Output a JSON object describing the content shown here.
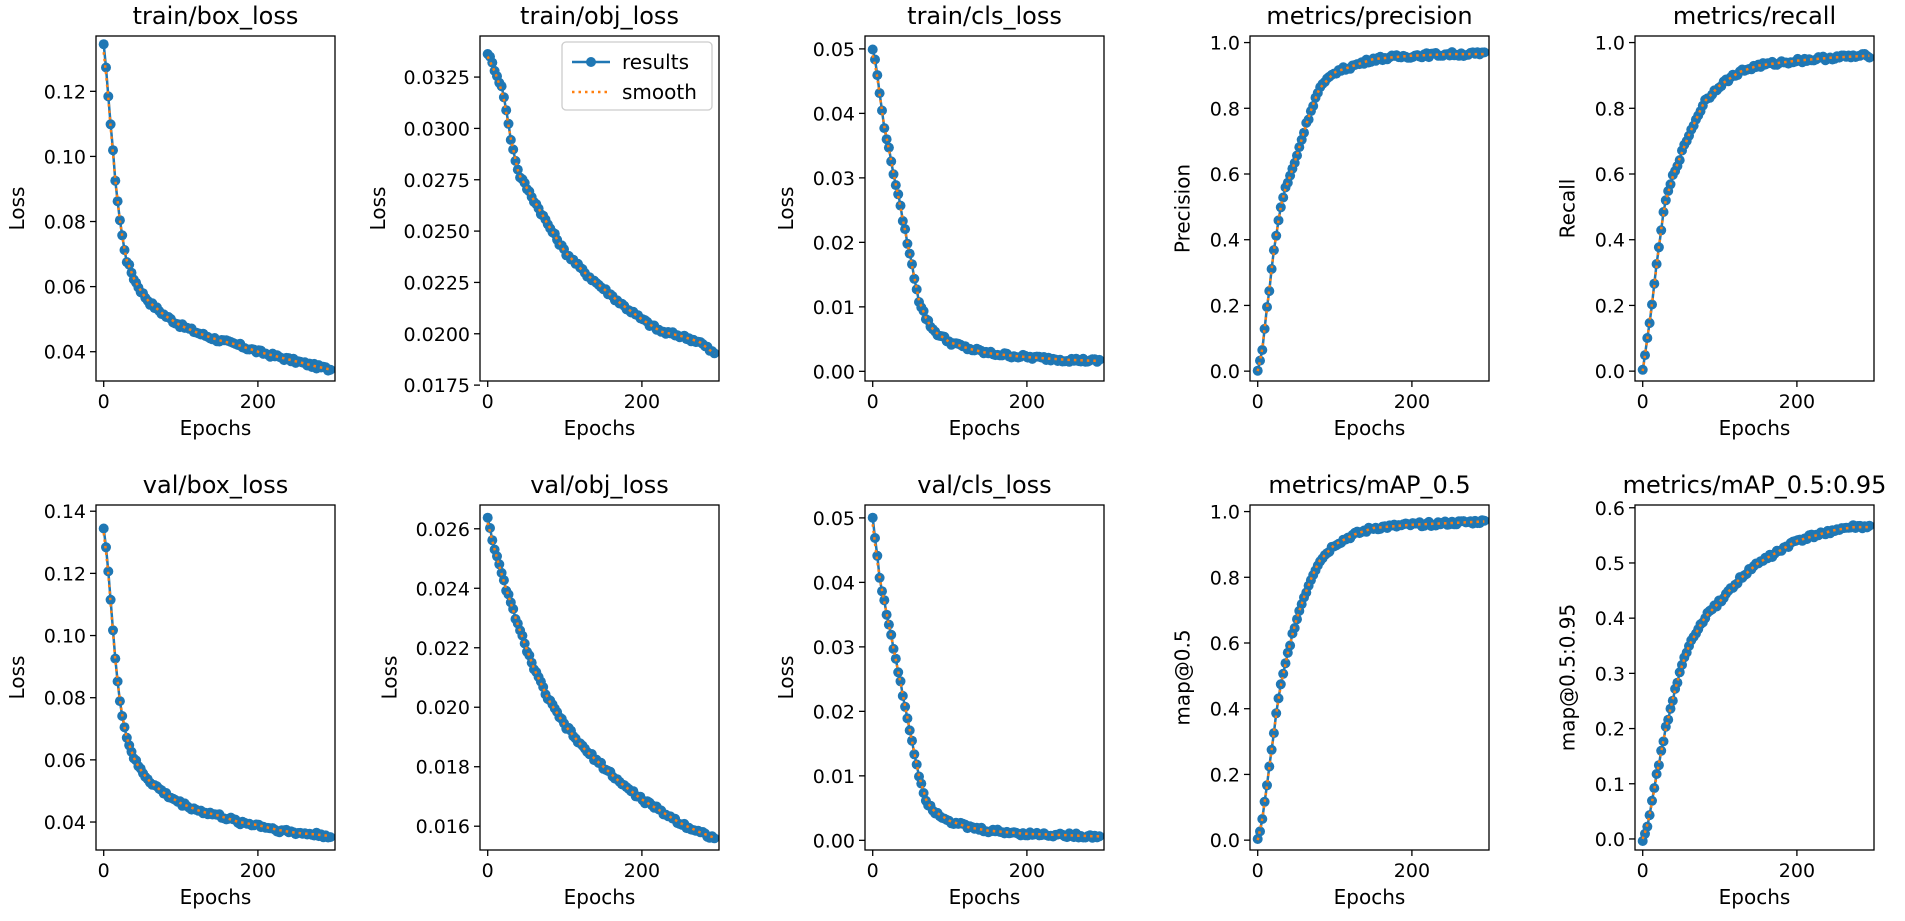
{
  "colors": {
    "results": "#1f77b4",
    "smooth": "#ff7f0e",
    "axes": "#000000",
    "background": "#ffffff"
  },
  "legend": {
    "results_label": "results",
    "smooth_label": "smooth"
  },
  "chart_data": [
    {
      "type": "line",
      "title": "train/box_loss",
      "xlabel": "Epochs",
      "ylabel": "Loss",
      "xlim": [
        -10,
        300
      ],
      "ylim": [
        0.031,
        0.137
      ],
      "xticks": [
        0,
        200
      ],
      "yticks": [
        0.04,
        0.06,
        0.08,
        0.1,
        0.12
      ],
      "ytick_labels": [
        "0.04",
        "0.06",
        "0.08",
        "0.10",
        "0.12"
      ],
      "x": [
        0,
        5,
        10,
        15,
        20,
        25,
        30,
        40,
        50,
        60,
        80,
        100,
        125,
        150,
        175,
        200,
        225,
        250,
        275,
        295
      ],
      "series": [
        {
          "name": "results",
          "values": [
            0.134,
            0.122,
            0.107,
            0.093,
            0.082,
            0.074,
            0.068,
            0.062,
            0.058,
            0.055,
            0.051,
            0.048,
            0.0455,
            0.0435,
            0.042,
            0.04,
            0.0385,
            0.037,
            0.0355,
            0.0345
          ]
        },
        {
          "name": "smooth",
          "values": [
            0.132,
            0.121,
            0.106,
            0.093,
            0.082,
            0.074,
            0.068,
            0.062,
            0.058,
            0.055,
            0.051,
            0.048,
            0.0455,
            0.0435,
            0.042,
            0.04,
            0.0385,
            0.037,
            0.0355,
            0.0345
          ]
        }
      ]
    },
    {
      "type": "line",
      "title": "train/obj_loss",
      "xlabel": "Epochs",
      "ylabel": "Loss",
      "xlim": [
        -10,
        300
      ],
      "ylim": [
        0.0177,
        0.0345
      ],
      "xticks": [
        0,
        200
      ],
      "yticks": [
        0.0175,
        0.02,
        0.0225,
        0.025,
        0.0275,
        0.03,
        0.0325
      ],
      "ytick_labels": [
        "0.0175",
        "0.0200",
        "0.0225",
        "0.0250",
        "0.0275",
        "0.0300",
        "0.0325"
      ],
      "legend": true,
      "x": [
        0,
        10,
        20,
        30,
        40,
        60,
        80,
        100,
        125,
        150,
        175,
        200,
        225,
        250,
        275,
        295
      ],
      "series": [
        {
          "name": "results",
          "values": [
            0.0337,
            0.0328,
            0.0318,
            0.0295,
            0.0278,
            0.0265,
            0.0252,
            0.024,
            0.023,
            0.0222,
            0.0214,
            0.0207,
            0.0201,
            0.0199,
            0.0196,
            0.019
          ]
        },
        {
          "name": "smooth",
          "values": [
            0.0335,
            0.0327,
            0.0316,
            0.0295,
            0.0278,
            0.0265,
            0.0252,
            0.024,
            0.023,
            0.0222,
            0.0214,
            0.0207,
            0.0201,
            0.0199,
            0.0196,
            0.019
          ]
        }
      ]
    },
    {
      "type": "line",
      "title": "train/cls_loss",
      "xlabel": "Epochs",
      "ylabel": "Loss",
      "xlim": [
        -10,
        300
      ],
      "ylim": [
        -0.0015,
        0.052
      ],
      "xticks": [
        0,
        200
      ],
      "yticks": [
        0.0,
        0.01,
        0.02,
        0.03,
        0.04,
        0.05
      ],
      "ytick_labels": [
        "0.00",
        "0.01",
        "0.02",
        "0.03",
        "0.04",
        "0.05"
      ],
      "x": [
        0,
        5,
        10,
        15,
        20,
        30,
        40,
        50,
        60,
        70,
        80,
        100,
        125,
        150,
        200,
        250,
        295
      ],
      "series": [
        {
          "name": "results",
          "values": [
            0.05,
            0.047,
            0.042,
            0.038,
            0.035,
            0.029,
            0.023,
            0.017,
            0.011,
            0.008,
            0.0062,
            0.0045,
            0.0035,
            0.0028,
            0.0022,
            0.0018,
            0.0016
          ]
        },
        {
          "name": "smooth",
          "values": [
            0.049,
            0.0465,
            0.042,
            0.038,
            0.035,
            0.029,
            0.023,
            0.017,
            0.011,
            0.008,
            0.0062,
            0.0045,
            0.0035,
            0.0028,
            0.0022,
            0.0018,
            0.0016
          ]
        }
      ]
    },
    {
      "type": "line",
      "title": "metrics/precision",
      "xlabel": "Epochs",
      "ylabel": "Precision",
      "xlim": [
        -10,
        300
      ],
      "ylim": [
        -0.03,
        1.02
      ],
      "xticks": [
        0,
        200
      ],
      "yticks": [
        0.0,
        0.2,
        0.4,
        0.6,
        0.8,
        1.0
      ],
      "ytick_labels": [
        "0.0",
        "0.2",
        "0.4",
        "0.6",
        "0.8",
        "1.0"
      ],
      "x": [
        0,
        5,
        10,
        15,
        20,
        25,
        30,
        35,
        40,
        50,
        60,
        70,
        80,
        100,
        125,
        150,
        200,
        250,
        295
      ],
      "series": [
        {
          "name": "results",
          "values": [
            0.0,
            0.05,
            0.15,
            0.25,
            0.35,
            0.43,
            0.5,
            0.55,
            0.58,
            0.65,
            0.73,
            0.8,
            0.86,
            0.91,
            0.93,
            0.95,
            0.96,
            0.965,
            0.965
          ]
        },
        {
          "name": "smooth",
          "values": [
            0.0,
            0.05,
            0.15,
            0.25,
            0.35,
            0.43,
            0.5,
            0.55,
            0.58,
            0.65,
            0.73,
            0.8,
            0.86,
            0.91,
            0.93,
            0.95,
            0.96,
            0.965,
            0.965
          ]
        }
      ]
    },
    {
      "type": "line",
      "title": "metrics/recall",
      "xlabel": "Epochs",
      "ylabel": "Recall",
      "xlim": [
        -10,
        300
      ],
      "ylim": [
        -0.03,
        1.02
      ],
      "xticks": [
        0,
        200
      ],
      "yticks": [
        0.0,
        0.2,
        0.4,
        0.6,
        0.8,
        1.0
      ],
      "ytick_labels": [
        "0.0",
        "0.2",
        "0.4",
        "0.6",
        "0.8",
        "1.0"
      ],
      "x": [
        0,
        5,
        10,
        15,
        20,
        25,
        30,
        40,
        50,
        60,
        70,
        80,
        100,
        125,
        150,
        200,
        250,
        295
      ],
      "series": [
        {
          "name": "results",
          "values": [
            0.0,
            0.08,
            0.17,
            0.26,
            0.36,
            0.45,
            0.52,
            0.6,
            0.66,
            0.72,
            0.77,
            0.82,
            0.87,
            0.91,
            0.93,
            0.945,
            0.955,
            0.96
          ]
        },
        {
          "name": "smooth",
          "values": [
            0.0,
            0.08,
            0.17,
            0.26,
            0.36,
            0.45,
            0.52,
            0.6,
            0.66,
            0.72,
            0.77,
            0.82,
            0.87,
            0.91,
            0.93,
            0.945,
            0.955,
            0.96
          ]
        }
      ]
    },
    {
      "type": "line",
      "title": "val/box_loss",
      "xlabel": "Epochs",
      "ylabel": "Loss",
      "xlim": [
        -10,
        300
      ],
      "ylim": [
        0.031,
        0.142
      ],
      "xticks": [
        0,
        200
      ],
      "yticks": [
        0.04,
        0.06,
        0.08,
        0.1,
        0.12,
        0.14
      ],
      "ytick_labels": [
        "0.04",
        "0.06",
        "0.08",
        "0.10",
        "0.12",
        "0.14"
      ],
      "x": [
        0,
        5,
        10,
        15,
        20,
        25,
        30,
        40,
        50,
        60,
        80,
        100,
        125,
        150,
        175,
        200,
        225,
        250,
        275,
        295
      ],
      "series": [
        {
          "name": "results",
          "values": [
            0.135,
            0.124,
            0.108,
            0.092,
            0.081,
            0.073,
            0.067,
            0.06,
            0.056,
            0.053,
            0.049,
            0.046,
            0.0435,
            0.042,
            0.04,
            0.039,
            0.0375,
            0.0365,
            0.036,
            0.0355
          ]
        },
        {
          "name": "smooth",
          "values": [
            0.133,
            0.123,
            0.107,
            0.092,
            0.081,
            0.073,
            0.067,
            0.06,
            0.056,
            0.053,
            0.049,
            0.046,
            0.0435,
            0.042,
            0.04,
            0.039,
            0.0375,
            0.0365,
            0.036,
            0.0355
          ]
        }
      ]
    },
    {
      "type": "line",
      "title": "val/obj_loss",
      "xlabel": "Epochs",
      "ylabel": "Loss",
      "xlim": [
        -10,
        300
      ],
      "ylim": [
        0.0152,
        0.0268
      ],
      "xticks": [
        0,
        200
      ],
      "yticks": [
        0.016,
        0.018,
        0.02,
        0.022,
        0.024,
        0.026
      ],
      "ytick_labels": [
        "0.016",
        "0.018",
        "0.020",
        "0.022",
        "0.024",
        "0.026"
      ],
      "x": [
        0,
        10,
        20,
        30,
        40,
        60,
        80,
        100,
        125,
        150,
        175,
        200,
        225,
        250,
        275,
        295
      ],
      "series": [
        {
          "name": "results",
          "values": [
            0.0264,
            0.0252,
            0.0243,
            0.0235,
            0.0227,
            0.0213,
            0.0202,
            0.0194,
            0.0186,
            0.018,
            0.0174,
            0.0169,
            0.0165,
            0.0161,
            0.0158,
            0.0156
          ]
        },
        {
          "name": "smooth",
          "values": [
            0.0262,
            0.0252,
            0.0243,
            0.0235,
            0.0227,
            0.0213,
            0.0202,
            0.0194,
            0.0186,
            0.018,
            0.0174,
            0.0169,
            0.0165,
            0.0161,
            0.0158,
            0.0156
          ]
        }
      ]
    },
    {
      "type": "line",
      "title": "val/cls_loss",
      "xlabel": "Epochs",
      "ylabel": "Loss",
      "xlim": [
        -10,
        300
      ],
      "ylim": [
        -0.0015,
        0.052
      ],
      "xticks": [
        0,
        200
      ],
      "yticks": [
        0.0,
        0.01,
        0.02,
        0.03,
        0.04,
        0.05
      ],
      "ytick_labels": [
        "0.00",
        "0.01",
        "0.02",
        "0.03",
        "0.04",
        "0.05"
      ],
      "x": [
        0,
        5,
        10,
        15,
        20,
        30,
        40,
        50,
        60,
        70,
        80,
        100,
        125,
        150,
        200,
        250,
        295
      ],
      "series": [
        {
          "name": "results",
          "values": [
            0.05,
            0.045,
            0.04,
            0.037,
            0.034,
            0.028,
            0.022,
            0.016,
            0.01,
            0.006,
            0.0045,
            0.003,
            0.002,
            0.0015,
            0.001,
            0.0008,
            0.0006
          ]
        },
        {
          "name": "smooth",
          "values": [
            0.049,
            0.044,
            0.04,
            0.037,
            0.034,
            0.028,
            0.022,
            0.016,
            0.01,
            0.006,
            0.0045,
            0.003,
            0.002,
            0.0015,
            0.001,
            0.0008,
            0.0006
          ]
        }
      ]
    },
    {
      "type": "line",
      "title": "metrics/mAP_0.5",
      "xlabel": "Epochs",
      "ylabel": "map@0.5",
      "xlim": [
        -10,
        300
      ],
      "ylim": [
        -0.03,
        1.02
      ],
      "xticks": [
        0,
        200
      ],
      "yticks": [
        0.0,
        0.2,
        0.4,
        0.6,
        0.8,
        1.0
      ],
      "ytick_labels": [
        "0.0",
        "0.2",
        "0.4",
        "0.6",
        "0.8",
        "1.0"
      ],
      "x": [
        0,
        5,
        10,
        15,
        20,
        25,
        30,
        40,
        50,
        60,
        70,
        80,
        100,
        125,
        150,
        200,
        250,
        295
      ],
      "series": [
        {
          "name": "results",
          "values": [
            0.0,
            0.05,
            0.13,
            0.22,
            0.31,
            0.4,
            0.47,
            0.58,
            0.67,
            0.74,
            0.8,
            0.85,
            0.9,
            0.93,
            0.95,
            0.96,
            0.965,
            0.97
          ]
        },
        {
          "name": "smooth",
          "values": [
            0.0,
            0.05,
            0.13,
            0.22,
            0.31,
            0.4,
            0.47,
            0.58,
            0.67,
            0.74,
            0.8,
            0.85,
            0.9,
            0.93,
            0.95,
            0.96,
            0.965,
            0.97
          ]
        }
      ]
    },
    {
      "type": "line",
      "title": "metrics/mAP_0.5:0.95",
      "xlabel": "Epochs",
      "ylabel": "map@0.5:0.95",
      "xlim": [
        -10,
        300
      ],
      "ylim": [
        -0.02,
        0.605
      ],
      "xticks": [
        0,
        200
      ],
      "yticks": [
        0.0,
        0.1,
        0.2,
        0.3,
        0.4,
        0.5,
        0.6
      ],
      "ytick_labels": [
        "0.0",
        "0.1",
        "0.2",
        "0.3",
        "0.4",
        "0.5",
        "0.6"
      ],
      "x": [
        0,
        5,
        10,
        15,
        20,
        30,
        40,
        50,
        60,
        80,
        100,
        125,
        150,
        175,
        200,
        225,
        250,
        275,
        295
      ],
      "series": [
        {
          "name": "results",
          "values": [
            0.0,
            0.02,
            0.05,
            0.09,
            0.13,
            0.2,
            0.26,
            0.31,
            0.35,
            0.4,
            0.43,
            0.47,
            0.5,
            0.52,
            0.54,
            0.55,
            0.56,
            0.565,
            0.565
          ]
        },
        {
          "name": "smooth",
          "values": [
            0.0,
            0.02,
            0.05,
            0.09,
            0.13,
            0.2,
            0.26,
            0.31,
            0.35,
            0.4,
            0.43,
            0.47,
            0.5,
            0.52,
            0.54,
            0.55,
            0.56,
            0.565,
            0.565
          ]
        }
      ]
    }
  ]
}
